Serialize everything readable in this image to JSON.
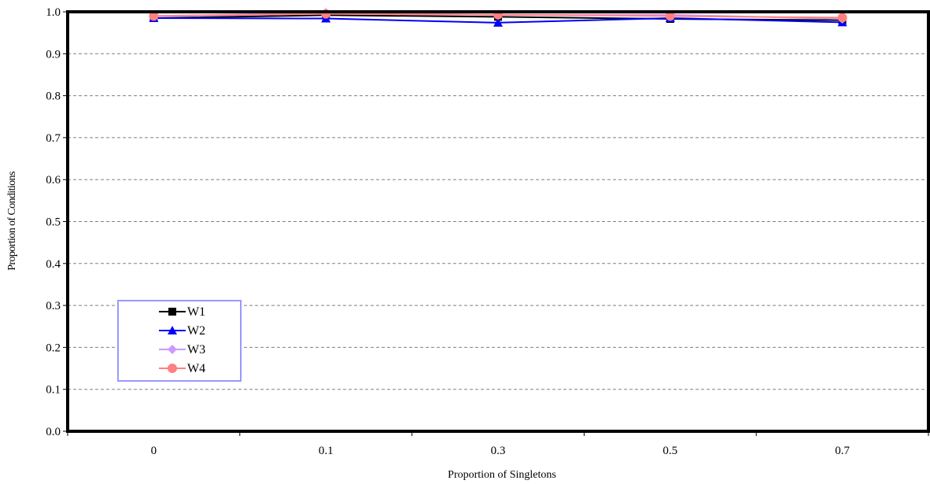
{
  "chart_data": {
    "type": "line",
    "xlabel": "Proportion of Singletons",
    "ylabel": "Proportion of Conditions",
    "categories": [
      "0",
      "0.1",
      "0.3",
      "0.5",
      "0.7"
    ],
    "ylim": [
      0,
      1
    ],
    "yticks": [
      "0.0",
      "0.1",
      "0.2",
      "0.3",
      "0.4",
      "0.5",
      "0.6",
      "0.7",
      "0.8",
      "0.9",
      "1.0"
    ],
    "grid": "horizontal dashed",
    "legend_position": "lower-left",
    "series": [
      {
        "name": "W1",
        "values": [
          0.985,
          0.992,
          0.988,
          0.983,
          0.98
        ],
        "color": "#000000",
        "marker": "square"
      },
      {
        "name": "W2",
        "values": [
          0.985,
          0.984,
          0.974,
          0.985,
          0.975
        ],
        "color": "#0000ff",
        "marker": "triangle"
      },
      {
        "name": "W3",
        "values": [
          0.99,
          0.998,
          0.993,
          0.993,
          0.983
        ],
        "color": "#cc99ff",
        "marker": "diamond"
      },
      {
        "name": "W4",
        "values": [
          0.99,
          0.995,
          0.993,
          0.99,
          0.986
        ],
        "color": "#ff8080",
        "marker": "circle"
      }
    ]
  }
}
